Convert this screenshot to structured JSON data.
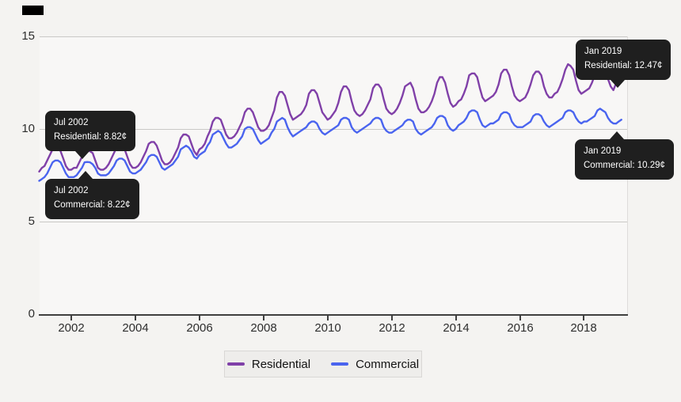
{
  "page": {
    "background": "#f4f3f1"
  },
  "colors": {
    "residential": "#8040a8",
    "commercial": "#4a64ef",
    "tooltip_bg": "#1f1f1f",
    "gridline": "#c9c8c6",
    "axis": "#3f3f3f"
  },
  "y_axis": {
    "tick_labels": [
      "15",
      "10",
      "5",
      "0"
    ],
    "tick_values": [
      15,
      10,
      5,
      0
    ]
  },
  "x_axis": {
    "tick_labels": [
      "2002",
      "2004",
      "2006",
      "2008",
      "2010",
      "2012",
      "2014",
      "2016",
      "2018"
    ],
    "tick_values": [
      2002,
      2004,
      2006,
      2008,
      2010,
      2012,
      2014,
      2016,
      2018
    ]
  },
  "legend": {
    "items": [
      {
        "label": "Residential",
        "color": "#8040a8"
      },
      {
        "label": "Commercial",
        "color": "#4a64ef"
      }
    ]
  },
  "tooltips": [
    {
      "line1": "Jul 2002",
      "line2": "Residential: 8.82¢"
    },
    {
      "line1": "Jul 2002",
      "line2": "Commercial: 8.22¢"
    },
    {
      "line1": "Jan 2019",
      "line2": "Residential: 12.47¢"
    },
    {
      "line1": "Jan 2019",
      "line2": "Commercial: 10.29¢"
    }
  ],
  "chart_data": {
    "type": "line",
    "title": "",
    "xlabel": "",
    "ylabel": "",
    "unit": "¢",
    "ylim": [
      0,
      15
    ],
    "x_start_year": 2001,
    "points_per_year": 12,
    "grid": true,
    "legend_position": "bottom",
    "annotations": [
      {
        "date": "Jul 2002",
        "series": "Residential",
        "value": 8.82
      },
      {
        "date": "Jul 2002",
        "series": "Commercial",
        "value": 8.22
      },
      {
        "date": "Jan 2019",
        "series": "Residential",
        "value": 12.47
      },
      {
        "date": "Jan 2019",
        "series": "Commercial",
        "value": 10.29
      }
    ],
    "series": [
      {
        "name": "Commercial",
        "color": "#4a64ef",
        "values": [
          7.2,
          7.3,
          7.4,
          7.6,
          7.9,
          8.2,
          8.3,
          8.3,
          8.2,
          7.9,
          7.6,
          7.4,
          7.4,
          7.4,
          7.5,
          7.7,
          7.9,
          8.2,
          8.22,
          8.2,
          8.1,
          7.9,
          7.6,
          7.5,
          7.5,
          7.5,
          7.6,
          7.8,
          8.0,
          8.3,
          8.4,
          8.4,
          8.3,
          8.0,
          7.7,
          7.6,
          7.6,
          7.7,
          7.8,
          8.0,
          8.2,
          8.5,
          8.6,
          8.6,
          8.5,
          8.2,
          7.9,
          7.8,
          7.9,
          8.0,
          8.1,
          8.3,
          8.5,
          8.9,
          9.0,
          9.1,
          9.0,
          8.8,
          8.5,
          8.4,
          8.6,
          8.7,
          8.8,
          9.1,
          9.3,
          9.7,
          9.8,
          9.9,
          9.8,
          9.5,
          9.2,
          9.0,
          9.0,
          9.1,
          9.2,
          9.4,
          9.6,
          10.0,
          10.1,
          10.1,
          10.0,
          9.7,
          9.4,
          9.2,
          9.3,
          9.4,
          9.5,
          9.8,
          10.0,
          10.4,
          10.5,
          10.6,
          10.5,
          10.1,
          9.8,
          9.6,
          9.7,
          9.8,
          9.9,
          10.0,
          10.1,
          10.3,
          10.4,
          10.4,
          10.3,
          10.0,
          9.8,
          9.7,
          9.8,
          9.9,
          10.0,
          10.1,
          10.2,
          10.5,
          10.6,
          10.6,
          10.5,
          10.1,
          9.9,
          9.8,
          9.9,
          10.0,
          10.1,
          10.2,
          10.3,
          10.5,
          10.6,
          10.6,
          10.5,
          10.1,
          9.9,
          9.8,
          9.8,
          9.9,
          10.0,
          10.1,
          10.2,
          10.4,
          10.5,
          10.5,
          10.4,
          10.0,
          9.8,
          9.7,
          9.8,
          9.9,
          10.0,
          10.1,
          10.3,
          10.6,
          10.7,
          10.7,
          10.6,
          10.2,
          10.0,
          9.9,
          10.0,
          10.2,
          10.3,
          10.4,
          10.6,
          10.9,
          11.0,
          11.0,
          10.9,
          10.5,
          10.2,
          10.1,
          10.2,
          10.3,
          10.3,
          10.4,
          10.5,
          10.8,
          10.9,
          10.9,
          10.8,
          10.4,
          10.2,
          10.1,
          10.1,
          10.1,
          10.2,
          10.3,
          10.4,
          10.7,
          10.8,
          10.8,
          10.7,
          10.4,
          10.2,
          10.1,
          10.2,
          10.3,
          10.4,
          10.5,
          10.6,
          10.9,
          11.0,
          11.0,
          10.9,
          10.6,
          10.4,
          10.3,
          10.4,
          10.4,
          10.5,
          10.6,
          10.7,
          11.0,
          11.1,
          11.0,
          10.9,
          10.6,
          10.4,
          10.3,
          10.29,
          10.4,
          10.5
        ]
      },
      {
        "name": "Residential",
        "color": "#8040a8",
        "values": [
          7.7,
          7.9,
          8.0,
          8.3,
          8.6,
          8.9,
          9.0,
          9.0,
          8.8,
          8.4,
          8.0,
          7.8,
          7.8,
          7.9,
          7.9,
          8.2,
          8.5,
          8.8,
          8.82,
          8.8,
          8.7,
          8.3,
          7.9,
          7.8,
          7.8,
          7.9,
          8.1,
          8.4,
          8.7,
          9.0,
          9.1,
          9.1,
          8.9,
          8.5,
          8.1,
          7.9,
          7.9,
          8.0,
          8.2,
          8.5,
          8.8,
          9.2,
          9.3,
          9.3,
          9.1,
          8.7,
          8.3,
          8.1,
          8.1,
          8.2,
          8.4,
          8.7,
          9.0,
          9.5,
          9.7,
          9.7,
          9.6,
          9.2,
          8.8,
          8.6,
          8.9,
          9.0,
          9.2,
          9.6,
          9.9,
          10.4,
          10.6,
          10.6,
          10.5,
          10.1,
          9.7,
          9.5,
          9.5,
          9.6,
          9.8,
          10.1,
          10.4,
          10.9,
          11.1,
          11.1,
          10.9,
          10.5,
          10.1,
          9.9,
          9.9,
          10.0,
          10.2,
          10.6,
          11.0,
          11.7,
          12.0,
          12.0,
          11.8,
          11.3,
          10.8,
          10.5,
          10.6,
          10.7,
          10.8,
          11.0,
          11.3,
          11.9,
          12.1,
          12.1,
          11.9,
          11.4,
          10.9,
          10.7,
          10.5,
          10.6,
          10.8,
          11.0,
          11.4,
          12.0,
          12.3,
          12.3,
          12.1,
          11.5,
          11.0,
          10.8,
          10.7,
          10.8,
          11.0,
          11.3,
          11.6,
          12.2,
          12.4,
          12.4,
          12.2,
          11.6,
          11.1,
          10.9,
          10.8,
          10.9,
          11.1,
          11.4,
          11.8,
          12.3,
          12.4,
          12.5,
          12.2,
          11.6,
          11.1,
          10.9,
          10.9,
          11.0,
          11.2,
          11.5,
          11.9,
          12.5,
          12.8,
          12.8,
          12.5,
          11.9,
          11.4,
          11.2,
          11.3,
          11.5,
          11.6,
          11.9,
          12.3,
          12.9,
          13.0,
          13.0,
          12.8,
          12.2,
          11.7,
          11.5,
          11.6,
          11.7,
          11.8,
          12.0,
          12.4,
          13.0,
          13.2,
          13.2,
          12.9,
          12.3,
          11.8,
          11.6,
          11.5,
          11.6,
          11.7,
          12.0,
          12.4,
          12.9,
          13.1,
          13.1,
          12.9,
          12.3,
          11.9,
          11.7,
          11.7,
          11.9,
          12.0,
          12.3,
          12.7,
          13.2,
          13.5,
          13.4,
          13.2,
          12.6,
          12.1,
          11.9,
          12.0,
          12.1,
          12.2,
          12.5,
          12.9,
          13.4,
          13.6,
          13.5,
          13.2,
          12.7,
          12.3,
          12.1,
          12.47,
          12.8,
          13.0
        ]
      }
    ]
  }
}
